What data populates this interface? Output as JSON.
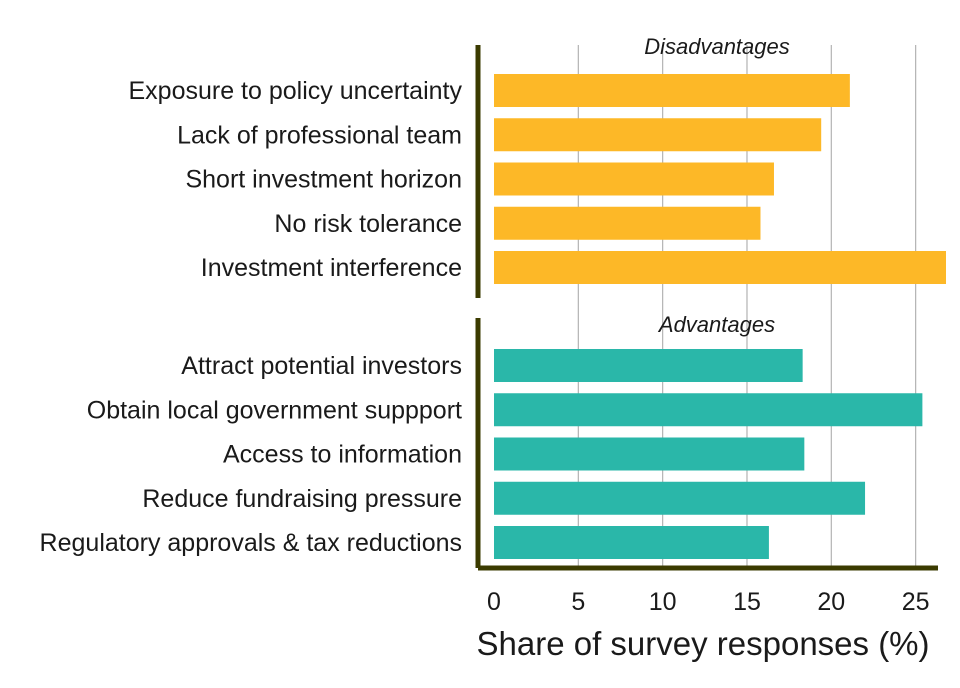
{
  "chart_data": {
    "type": "bar",
    "orientation": "horizontal",
    "xlabel": "Share of survey responses (%)",
    "xlim": [
      0,
      26.8
    ],
    "xticks": [
      0,
      5,
      10,
      15,
      20,
      25
    ],
    "grid": "vertical",
    "groups": [
      {
        "title": "Disadvantages",
        "color": "#FDB827",
        "categories": [
          "Exposure to policy uncertainty",
          "Lack of professional team",
          "Short investment horizon",
          "No risk tolerance",
          "Investment interference"
        ],
        "values": [
          21.1,
          19.4,
          16.6,
          15.8,
          26.8
        ]
      },
      {
        "title": "Advantages",
        "color": "#2AB7A9",
        "categories": [
          "Attract potential investors",
          "Obtain local government suppport",
          "Access to information",
          "Reduce fundraising pressure",
          "Regulatory approvals & tax reductions"
        ],
        "values": [
          18.3,
          25.4,
          18.4,
          22.0,
          16.3
        ]
      }
    ]
  }
}
